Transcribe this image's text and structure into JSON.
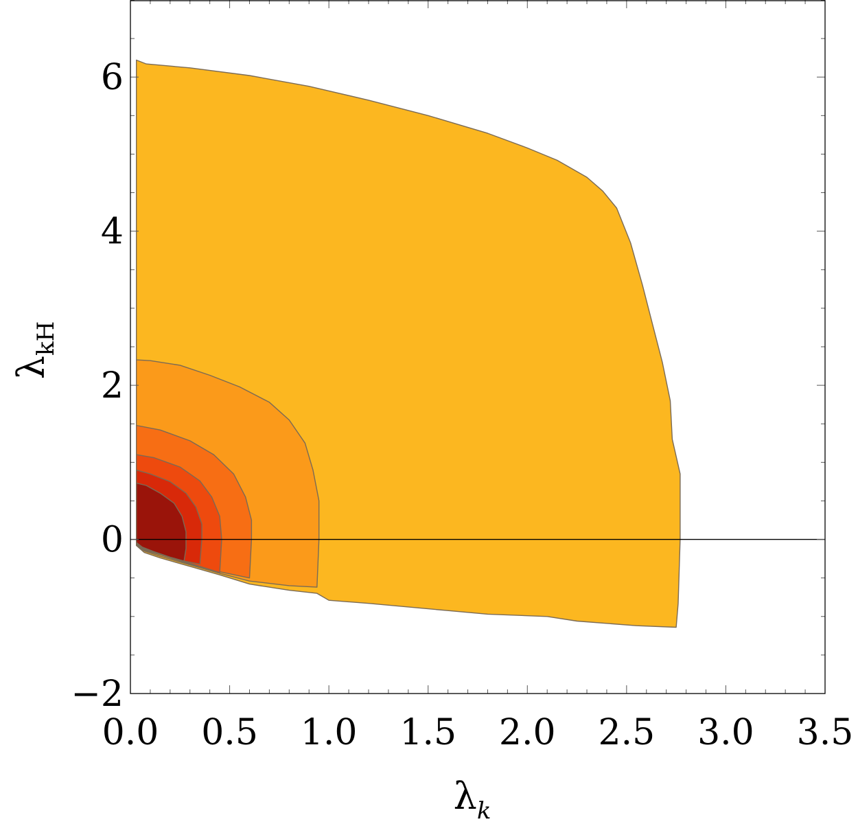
{
  "chart_data": {
    "type": "contour",
    "xlabel": {
      "symbol": "λ",
      "subscript": "k"
    },
    "ylabel": {
      "symbol": "λ",
      "subscript": "kH"
    },
    "xlim": [
      0,
      3.5
    ],
    "ylim": [
      -2,
      7
    ],
    "x_ticks": [
      0.0,
      0.5,
      1.0,
      1.5,
      2.0,
      2.5,
      3.0,
      3.5
    ],
    "x_tick_labels": [
      "0.0",
      "0.5",
      "1.0",
      "1.5",
      "2.0",
      "2.5",
      "3.0",
      "3.5"
    ],
    "y_ticks": [
      -2,
      0,
      2,
      4,
      6
    ],
    "y_tick_labels": [
      "−2",
      "0",
      "2",
      "4",
      "6"
    ],
    "grid": false,
    "zero_line": true,
    "region_colors": [
      "#fcb720",
      "#fb9a1a",
      "#f76e14",
      "#ee4a0e",
      "#d82909",
      "#9a140a"
    ],
    "regions": [
      {
        "level": 1,
        "boundary": [
          [
            0.03,
            6.22
          ],
          [
            0.08,
            6.17
          ],
          [
            0.3,
            6.12
          ],
          [
            0.6,
            6.02
          ],
          [
            0.9,
            5.88
          ],
          [
            1.2,
            5.7
          ],
          [
            1.5,
            5.5
          ],
          [
            1.8,
            5.27
          ],
          [
            2.0,
            5.08
          ],
          [
            2.15,
            4.92
          ],
          [
            2.3,
            4.7
          ],
          [
            2.38,
            4.52
          ],
          [
            2.45,
            4.3
          ],
          [
            2.52,
            3.85
          ],
          [
            2.58,
            3.3
          ],
          [
            2.63,
            2.8
          ],
          [
            2.68,
            2.3
          ],
          [
            2.72,
            1.8
          ],
          [
            2.73,
            1.3
          ],
          [
            2.77,
            0.85
          ],
          [
            2.77,
            0.0
          ],
          [
            2.76,
            -0.83
          ],
          [
            2.75,
            -1.14
          ],
          [
            2.55,
            -1.12
          ],
          [
            2.25,
            -1.06
          ],
          [
            2.1,
            -1.0
          ],
          [
            1.8,
            -0.97
          ],
          [
            1.5,
            -0.9
          ],
          [
            1.2,
            -0.83
          ],
          [
            1.0,
            -0.79
          ],
          [
            0.94,
            -0.7
          ],
          [
            0.8,
            -0.66
          ],
          [
            0.6,
            -0.58
          ],
          [
            0.45,
            -0.46
          ],
          [
            0.3,
            -0.35
          ],
          [
            0.15,
            -0.24
          ],
          [
            0.07,
            -0.17
          ],
          [
            0.03,
            -0.08
          ]
        ]
      },
      {
        "level": 2,
        "boundary": [
          [
            0.03,
            2.33
          ],
          [
            0.1,
            2.32
          ],
          [
            0.25,
            2.26
          ],
          [
            0.4,
            2.13
          ],
          [
            0.55,
            1.98
          ],
          [
            0.7,
            1.78
          ],
          [
            0.8,
            1.55
          ],
          [
            0.88,
            1.25
          ],
          [
            0.92,
            0.9
          ],
          [
            0.95,
            0.5
          ],
          [
            0.95,
            0.0
          ],
          [
            0.94,
            -0.62
          ],
          [
            0.8,
            -0.6
          ],
          [
            0.6,
            -0.54
          ],
          [
            0.45,
            -0.44
          ],
          [
            0.3,
            -0.33
          ],
          [
            0.15,
            -0.22
          ],
          [
            0.07,
            -0.15
          ],
          [
            0.03,
            -0.07
          ]
        ]
      },
      {
        "level": 3,
        "boundary": [
          [
            0.03,
            1.48
          ],
          [
            0.15,
            1.42
          ],
          [
            0.3,
            1.28
          ],
          [
            0.42,
            1.1
          ],
          [
            0.52,
            0.85
          ],
          [
            0.58,
            0.55
          ],
          [
            0.61,
            0.25
          ],
          [
            0.61,
            0.0
          ],
          [
            0.6,
            -0.5
          ],
          [
            0.45,
            -0.42
          ],
          [
            0.3,
            -0.32
          ],
          [
            0.15,
            -0.2
          ],
          [
            0.07,
            -0.14
          ],
          [
            0.03,
            -0.06
          ]
        ]
      },
      {
        "level": 4,
        "boundary": [
          [
            0.03,
            1.1
          ],
          [
            0.12,
            1.06
          ],
          [
            0.25,
            0.94
          ],
          [
            0.35,
            0.76
          ],
          [
            0.41,
            0.55
          ],
          [
            0.45,
            0.3
          ],
          [
            0.46,
            0.0
          ],
          [
            0.45,
            -0.43
          ],
          [
            0.3,
            -0.31
          ],
          [
            0.15,
            -0.19
          ],
          [
            0.07,
            -0.13
          ],
          [
            0.03,
            -0.06
          ]
        ]
      },
      {
        "level": 5,
        "boundary": [
          [
            0.03,
            0.9
          ],
          [
            0.1,
            0.85
          ],
          [
            0.2,
            0.75
          ],
          [
            0.28,
            0.6
          ],
          [
            0.33,
            0.42
          ],
          [
            0.36,
            0.2
          ],
          [
            0.36,
            0.0
          ],
          [
            0.35,
            -0.32
          ],
          [
            0.25,
            -0.27
          ],
          [
            0.15,
            -0.18
          ],
          [
            0.07,
            -0.12
          ],
          [
            0.03,
            -0.05
          ]
        ]
      },
      {
        "level": 6,
        "boundary": [
          [
            0.03,
            0.73
          ],
          [
            0.08,
            0.7
          ],
          [
            0.15,
            0.6
          ],
          [
            0.22,
            0.47
          ],
          [
            0.26,
            0.3
          ],
          [
            0.28,
            0.1
          ],
          [
            0.28,
            -0.12
          ],
          [
            0.27,
            -0.28
          ],
          [
            0.2,
            -0.23
          ],
          [
            0.12,
            -0.16
          ],
          [
            0.06,
            -0.1
          ],
          [
            0.03,
            -0.04
          ]
        ]
      }
    ]
  }
}
